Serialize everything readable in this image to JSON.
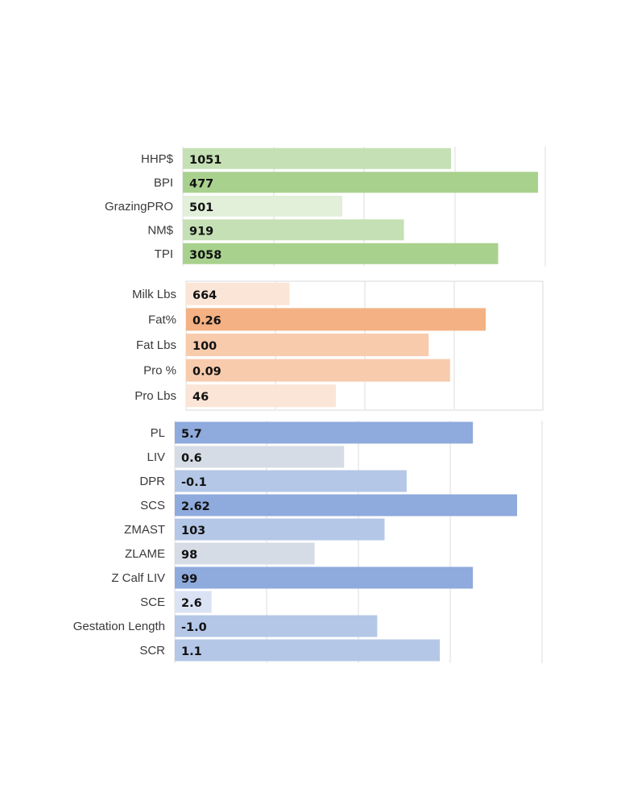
{
  "chart_data": [
    {
      "type": "bar",
      "orientation": "horizontal",
      "categories": [
        "HHP$",
        "BPI",
        "GrazingPRO",
        "NM$",
        "TPI"
      ],
      "values": [
        1051,
        477,
        501,
        919,
        3058
      ],
      "value_labels": [
        "1051",
        "477",
        "501",
        "919",
        "3058"
      ],
      "bar_fill_fraction": [
        0.74,
        0.98,
        0.44,
        0.61,
        0.87
      ],
      "colors": [
        "#c5e0b4",
        "#a9d18e",
        "#e2efd9",
        "#c5e0b4",
        "#a9d18e"
      ],
      "grid": true
    },
    {
      "type": "bar",
      "orientation": "horizontal",
      "categories": [
        "Milk Lbs",
        "Fat%",
        "Fat Lbs",
        "Pro %",
        "Pro Lbs"
      ],
      "values": [
        664,
        0.26,
        100,
        0.09,
        46
      ],
      "value_labels": [
        "664",
        "0.26",
        "100",
        "0.09",
        "46"
      ],
      "bar_fill_fraction": [
        0.29,
        0.84,
        0.68,
        0.74,
        0.42
      ],
      "colors": [
        "#fbe5d6",
        "#f4b183",
        "#f8cbad",
        "#f8cbad",
        "#fbe5d6"
      ],
      "grid": true
    },
    {
      "type": "bar",
      "orientation": "horizontal",
      "categories": [
        "PL",
        "LIV",
        "DPR",
        "SCS",
        "ZMAST",
        "ZLAME",
        "Z Calf LIV",
        "SCE",
        "Gestation Length",
        "SCR"
      ],
      "values": [
        5.7,
        0.6,
        -0.1,
        2.62,
        103,
        98,
        99,
        2.6,
        -1.0,
        1.1
      ],
      "value_labels": [
        "5.7",
        "0.6",
        "-0.1",
        "2.62",
        "103",
        "98",
        "99",
        "2.6",
        "-1.0",
        "1.1"
      ],
      "bar_fill_fraction": [
        0.81,
        0.46,
        0.63,
        0.93,
        0.57,
        0.38,
        0.81,
        0.1,
        0.55,
        0.72
      ],
      "colors": [
        "#8faadc",
        "#d6dce5",
        "#b4c7e7",
        "#8faadc",
        "#b4c7e7",
        "#d6dce5",
        "#8faadc",
        "#dae3f3",
        "#b4c7e7",
        "#b4c7e7"
      ],
      "grid": true
    }
  ]
}
